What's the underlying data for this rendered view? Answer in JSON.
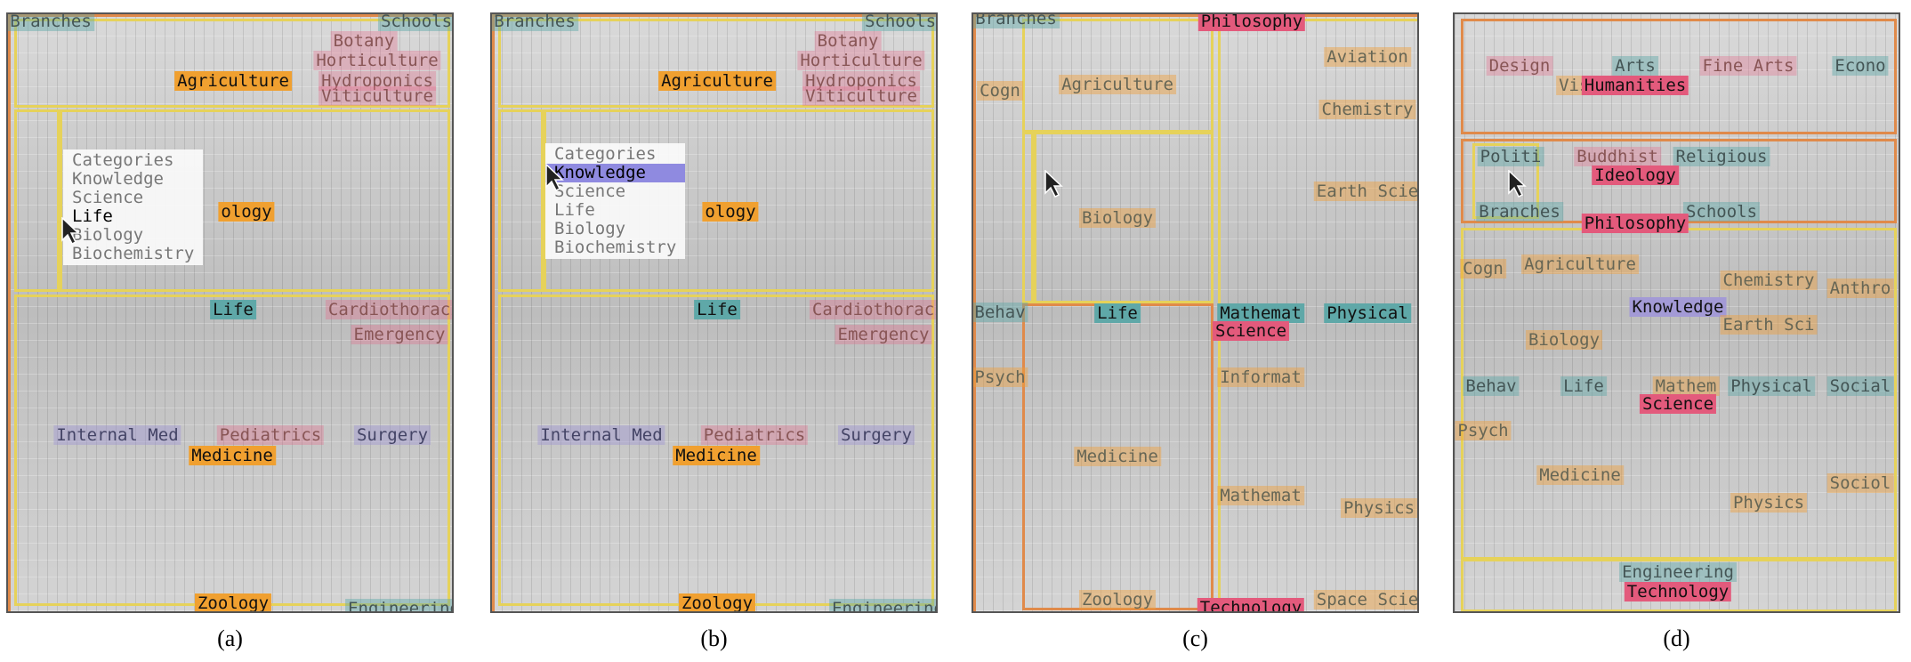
{
  "panels": [
    {
      "caption": "(a)",
      "labels": [
        "Branches",
        "Schools",
        "Botany",
        "Horticulture",
        "Agriculture",
        "Hydroponics",
        "Viticulture",
        "ology",
        "Life",
        "Cardiothoracic",
        "Emergency",
        "Internal Med",
        "Pediatrics",
        "Surgery",
        "Medicine",
        "Zoology",
        "Engineering"
      ],
      "menu": [
        "Categories",
        "Knowledge",
        "Science",
        "Life",
        "Biology",
        "Biochemistry"
      ]
    },
    {
      "caption": "(b)",
      "labels": [
        "Branches",
        "Schools",
        "Botany",
        "Horticulture",
        "Agriculture",
        "Hydroponics",
        "Viticulture",
        "ology",
        "Life",
        "Cardiothoracic",
        "Emergency",
        "Internal Med",
        "Pediatrics",
        "Surgery",
        "Medicine",
        "Zoology",
        "Engineering"
      ],
      "menu": [
        "Categories",
        "Knowledge",
        "Science",
        "Life",
        "Biology",
        "Biochemistry"
      ]
    },
    {
      "caption": "(c)",
      "labels": [
        "Branches",
        "Philosophy",
        "Aviation",
        "Cogn",
        "Agriculture",
        "Chemistry",
        "Earth Scie",
        "Biology",
        "Behav",
        "Life",
        "Mathemat",
        "Physical",
        "Science",
        "Psych",
        "Informat",
        "Medicine",
        "Mathemat",
        "Physics",
        "Zoology",
        "Space Scie",
        "Technology"
      ]
    },
    {
      "caption": "(d)",
      "labels": [
        "Design",
        "Arts",
        "Fine Arts",
        "Econo",
        "Visu",
        "Humanities",
        "Politi",
        "Buddhist",
        "Religious",
        "Ideology",
        "Branches",
        "Schools",
        "Philosophy",
        "Cogn",
        "Agriculture",
        "Chemistry",
        "Anthro",
        "Knowledge",
        "Biology",
        "Earth Sci",
        "Behav",
        "Life",
        "Mathem",
        "Physical",
        "Social",
        "Science",
        "Psych",
        "Medicine",
        "Sociol",
        "Physics",
        "Engineering",
        "Technology"
      ]
    }
  ]
}
